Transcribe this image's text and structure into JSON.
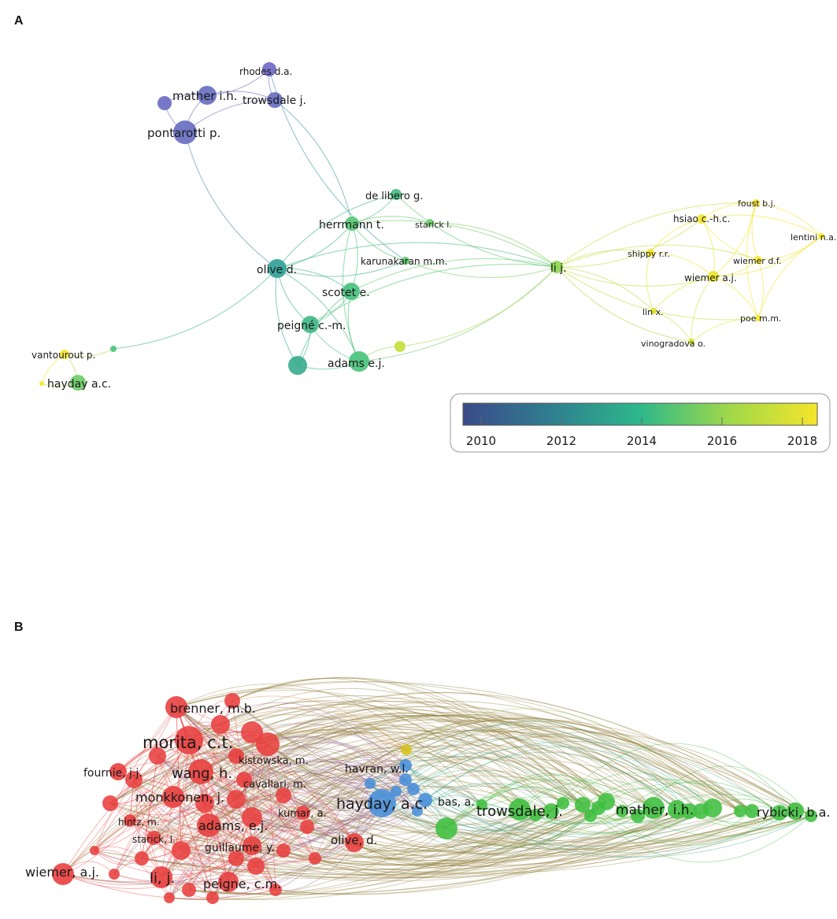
{
  "panels": {
    "a": {
      "letter": "A",
      "nodes": [
        {
          "id": "rhodes",
          "label": "rhodes d.a.",
          "year": 2009.5
        },
        {
          "id": "mather_a",
          "label": "mather i.h.",
          "year": 2009.8
        },
        {
          "id": "trowsdale_a",
          "label": "trowsdale j.",
          "year": 2009.8
        },
        {
          "id": "unlabeled_purple",
          "label": "",
          "year": 2009.7
        },
        {
          "id": "pontarotti",
          "label": "pontarotti p.",
          "year": 2009.8
        },
        {
          "id": "delibero",
          "label": "de libero g.",
          "year": 2014.5
        },
        {
          "id": "herrmann",
          "label": "herrmann t.",
          "year": 2015.2
        },
        {
          "id": "starick_a",
          "label": "starick l.",
          "year": 2015.5
        },
        {
          "id": "karunakaran",
          "label": "karunakaran m.m.",
          "year": 2015.3
        },
        {
          "id": "olive_a",
          "label": "olive d.",
          "year": 2013.0
        },
        {
          "id": "scotet",
          "label": "scotet e.",
          "year": 2014.8
        },
        {
          "id": "peigne_a",
          "label": "peigné c.-m.",
          "year": 2014.3
        },
        {
          "id": "adams_a",
          "label": "adams e.j.",
          "year": 2014.9
        },
        {
          "id": "unlabeled_teal",
          "label": "",
          "year": 2013.6
        },
        {
          "id": "unlabeled_lime",
          "label": "",
          "year": 2017.0
        },
        {
          "id": "li_a",
          "label": "li j.",
          "year": 2016.0
        },
        {
          "id": "foust",
          "label": "foust b.j.",
          "year": 2018.2
        },
        {
          "id": "hsiao",
          "label": "hsiao c.-h.c.",
          "year": 2017.9
        },
        {
          "id": "lentini",
          "label": "lentini n.a.",
          "year": 2018.3
        },
        {
          "id": "shippy",
          "label": "shippy r.r.",
          "year": 2018.0
        },
        {
          "id": "wiemer_df",
          "label": "wiemer d.f.",
          "year": 2018.0
        },
        {
          "id": "wiemer_aj",
          "label": "wiemer a.j.",
          "year": 2017.8
        },
        {
          "id": "linx",
          "label": "lin x.",
          "year": 2017.5
        },
        {
          "id": "poe",
          "label": "poe m.m.",
          "year": 2018.1
        },
        {
          "id": "vinogradova",
          "label": "vinogradova o.",
          "year": 2017.2
        },
        {
          "id": "vantourout",
          "label": "vantourout p.",
          "year": 2018.2
        },
        {
          "id": "unlabeled_small",
          "label": "",
          "year": 2015.0
        },
        {
          "id": "hayday_a",
          "label": "hayday a.c.",
          "year": 2015.5
        },
        {
          "id": "unlabeled_dot",
          "label": "",
          "year": 2018.3
        }
      ],
      "legend": {
        "ticks": [
          "2010",
          "2012",
          "2014",
          "2016",
          "2018"
        ],
        "gradient": [
          "#3b4a8a",
          "#2f7f8f",
          "#2db88a",
          "#9fd84a",
          "#f5e52a"
        ]
      }
    },
    "b": {
      "letter": "B",
      "clusters": {
        "red": "#e8403f",
        "blue": "#4a90d9",
        "green": "#3fbf3f",
        "yellow": "#d4c21e"
      },
      "labels": [
        {
          "id": "brenner",
          "text": "brenner, m.b.",
          "cluster": "red"
        },
        {
          "id": "morita",
          "text": "morita, c.t.",
          "cluster": "red"
        },
        {
          "id": "kistowska",
          "text": "kistowska, m.",
          "cluster": "red"
        },
        {
          "id": "fournie",
          "text": "fournie, j.j.",
          "cluster": "red"
        },
        {
          "id": "wang",
          "text": "wang, h.",
          "cluster": "red"
        },
        {
          "id": "cavallari",
          "text": "cavallari, m.",
          "cluster": "red"
        },
        {
          "id": "monkkonen",
          "text": "monkkonen, j.",
          "cluster": "red"
        },
        {
          "id": "hintz",
          "text": "hintz, m.",
          "cluster": "red"
        },
        {
          "id": "kumar",
          "text": "kumar, a.",
          "cluster": "red"
        },
        {
          "id": "adams_b",
          "text": "adams, e.j.",
          "cluster": "red"
        },
        {
          "id": "starick_b",
          "text": "starick, l.",
          "cluster": "red"
        },
        {
          "id": "guillaume",
          "text": "guillaume, y.",
          "cluster": "red"
        },
        {
          "id": "olive_b",
          "text": "olive, d.",
          "cluster": "red"
        },
        {
          "id": "wiemer_b",
          "text": "wiemer, a.j.",
          "cluster": "red"
        },
        {
          "id": "li_b",
          "text": "li, j.",
          "cluster": "red"
        },
        {
          "id": "peigne_b",
          "text": "peigne, c.m.",
          "cluster": "red"
        },
        {
          "id": "havran",
          "text": "havran, w.l.",
          "cluster": "blue"
        },
        {
          "id": "hayday_b",
          "text": "hayday, a.c.",
          "cluster": "blue"
        },
        {
          "id": "bas",
          "text": "bas, a.",
          "cluster": "blue"
        },
        {
          "id": "trowsdale_b",
          "text": "trowsdale, j.",
          "cluster": "green"
        },
        {
          "id": "mather_b",
          "text": "mather, i.h.",
          "cluster": "green"
        },
        {
          "id": "rybicki",
          "text": "rybicki, b.a.",
          "cluster": "green"
        }
      ]
    }
  }
}
